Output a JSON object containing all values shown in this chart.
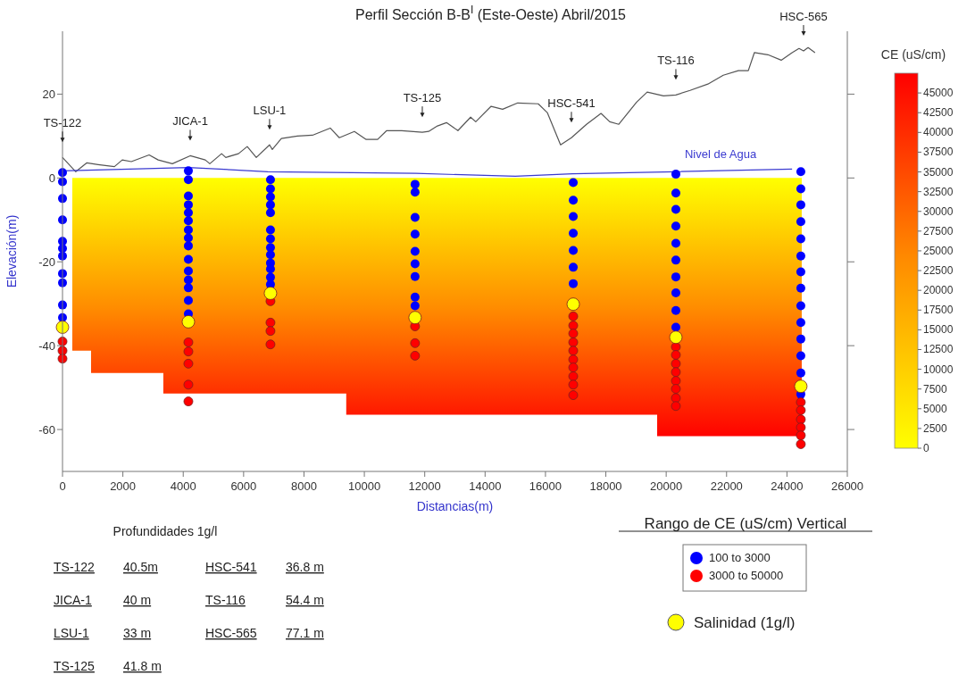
{
  "chart_data": {
    "type": "scatter",
    "title": "Perfil Sección B-B$^{I}$ (Este-Oeste) Abril/2015",
    "xlabel": "Distancias(m)",
    "ylabel": "Elevación(m)",
    "xlim": [
      0,
      26000
    ],
    "xticks": [
      0,
      2000,
      4000,
      6000,
      8000,
      10000,
      12000,
      14000,
      16000,
      18000,
      20000,
      22000,
      24000,
      26000
    ],
    "ylim": [
      -70,
      35
    ],
    "yticks": [
      -60,
      -40,
      -20,
      0,
      20
    ],
    "grid": false,
    "marker": "circle",
    "legend": "bottom right",
    "legend_title": "Rango de CE (uS/cm) Vertical",
    "clabel": "CE (uS/cm)",
    "clim": [
      0,
      47500
    ],
    "cticks": [
      0,
      2500,
      5000,
      7500,
      10000,
      12500,
      15000,
      17500,
      20000,
      22500,
      25000,
      27500,
      30000,
      32500,
      35000,
      37500,
      40000,
      42500,
      45000
    ],
    "series": [
      {
        "type": "area",
        "marker": "none",
        "x": [
          325,
          946,
          946,
          3340,
          3340,
          9400,
          9400,
          19700,
          19700,
          24490
        ],
        "values": [
          -41.2,
          -41.2,
          -46.5,
          -46.5,
          -51.4,
          -51.4,
          -56.5,
          -56.5,
          -61.6,
          -61.6
        ]
      },
      {
        "type": "line",
        "marker": "none",
        "color": "#555555",
        "x": [
          0,
          440,
          800,
          1180,
          1720,
          1980,
          2280,
          2870,
          3170,
          3640,
          4230,
          4730,
          4880,
          5270,
          5410,
          5830,
          6120,
          6420,
          6860,
          6950,
          7250,
          7780,
          8280,
          8870,
          9170,
          9670,
          10060,
          10440,
          10740,
          11240,
          11920,
          12130,
          12420,
          12720,
          13100,
          13520,
          13690,
          14200,
          14580,
          15080,
          15760,
          16060,
          16500,
          16860,
          17360,
          17840,
          18130,
          18430,
          19020,
          19370,
          19910,
          20320,
          20790,
          21380,
          21890,
          22390,
          22720,
          22920,
          23370,
          23810,
          24170,
          24400,
          24550,
          24700,
          24930
        ],
        "values": [
          4.9,
          1.5,
          3.6,
          3.2,
          2.7,
          4.3,
          3.9,
          5.5,
          4.3,
          3.4,
          5.3,
          4.3,
          3.4,
          5.8,
          4.9,
          5.8,
          7.5,
          4.9,
          7.9,
          6.8,
          9.4,
          10,
          10.2,
          11.9,
          9.6,
          11.1,
          9.2,
          9.2,
          11.3,
          11.3,
          10.9,
          11.1,
          12.4,
          13.2,
          11.3,
          14.5,
          13.4,
          17.1,
          16.4,
          17.9,
          17.7,
          15.6,
          7.9,
          9.6,
          12.8,
          15.4,
          13.4,
          12.8,
          18.1,
          20.5,
          19.6,
          19.8,
          20.9,
          22.4,
          24.5,
          25.6,
          25.6,
          29.9,
          29.4,
          28.1,
          29.9,
          30.9,
          30.3,
          31.1,
          29.9
        ]
      },
      {
        "type": "line",
        "marker": "none",
        "name": "Nivel de Agua",
        "color": "#3b3bd0",
        "x": [
          0,
          4170,
          6800,
          11700,
          15000,
          16900,
          20300,
          24170
        ],
        "values": [
          1.7,
          2.5,
          1.5,
          1.1,
          0.4,
          1.0,
          1.5,
          2.1
        ]
      },
      {
        "name": "100  to  3000",
        "color": "#0000ff",
        "x": [
          0,
          0,
          0,
          0,
          0,
          0,
          0,
          0,
          0,
          0,
          0,
          4170,
          4170,
          4170,
          4170,
          4170,
          4170,
          4170,
          4170,
          4170,
          4170,
          4170,
          4170,
          4170,
          4170,
          4170,
          6890,
          6890,
          6890,
          6890,
          6890,
          6890,
          6890,
          6890,
          6890,
          6890,
          6890,
          6890,
          6890,
          11680,
          11680,
          11680,
          11680,
          11680,
          11680,
          11680,
          11680,
          11680,
          16920,
          16920,
          16920,
          16920,
          16920,
          16920,
          16920,
          20320,
          20320,
          20320,
          20320,
          20320,
          20320,
          20320,
          20320,
          20320,
          20320,
          24460,
          24460,
          24460,
          24460,
          24460,
          24460,
          24460,
          24460,
          24460,
          24460,
          24460,
          24460,
          24460,
          24460
        ],
        "values": [
          1.3,
          -0.9,
          -4.9,
          -10,
          -15.1,
          -16.8,
          -18.6,
          -22.8,
          -25,
          -30.3,
          -33.3,
          1.7,
          -0.4,
          -4.3,
          -6.4,
          -8.3,
          -10.2,
          -12.4,
          -14.3,
          -16.2,
          -19.4,
          -22.2,
          -24.3,
          -26.2,
          -29.2,
          -32.4,
          -0.4,
          -2.6,
          -4.5,
          -6.4,
          -8.3,
          -12.4,
          -14.5,
          -16.6,
          -18.3,
          -20.3,
          -21.7,
          -23.7,
          -25.4,
          -1.5,
          -3.4,
          -9.4,
          -13.4,
          -17.5,
          -20.5,
          -23.5,
          -28.4,
          -30.5,
          -1.1,
          -5.3,
          -9.2,
          -13.2,
          -17.3,
          -21.3,
          -25.2,
          0.9,
          -3.6,
          -7.5,
          -11.5,
          -15.6,
          -19.6,
          -23.6,
          -27.4,
          -31.6,
          -35.6,
          1.5,
          -2.6,
          -6.4,
          -10.4,
          -14.5,
          -18.6,
          -22.4,
          -26.3,
          -30.5,
          -34.5,
          -38.4,
          -42.4,
          -46.5,
          -51.6
        ]
      },
      {
        "name": "3000  to  50000",
        "color": "#ff0000",
        "x": [
          0,
          0,
          0,
          4170,
          4170,
          4170,
          4170,
          4170,
          6890,
          6890,
          6890,
          6890,
          11680,
          11680,
          11680,
          16920,
          16920,
          16920,
          16920,
          16920,
          16920,
          16920,
          16920,
          16920,
          16920,
          20320,
          20320,
          20320,
          20320,
          20320,
          20320,
          20320,
          20320,
          24460,
          24460,
          24460,
          24460,
          24460,
          24460
        ],
        "values": [
          -39,
          -41.2,
          -43.1,
          -39.2,
          -41.4,
          -44.3,
          -49.3,
          -53.3,
          -29.4,
          -34.5,
          -36.5,
          -39.7,
          -35.4,
          -39.4,
          -42.4,
          -33,
          -35.2,
          -37.1,
          -39.2,
          -41.2,
          -43.3,
          -45.2,
          -47.3,
          -49.3,
          -51.8,
          -40.3,
          -42.2,
          -44.3,
          -46.3,
          -48.4,
          -50.3,
          -52.5,
          -54.4,
          -53.5,
          -55.4,
          -57.6,
          -59.5,
          -61.4,
          -63.5
        ]
      },
      {
        "name": "Salinidad (1g/l)",
        "color": "#ffff00",
        "x": [
          0,
          4170,
          6890,
          11680,
          16920,
          20320,
          24460
        ],
        "values": [
          -35.6,
          -34.3,
          -27.5,
          -33.3,
          -30.1,
          -38,
          -49.7
        ]
      }
    ],
    "annotations": [
      {
        "text": "TS-122",
        "x": 0,
        "y": 4.9
      },
      {
        "text": "JICA-1",
        "x": 4230,
        "y": 5.3
      },
      {
        "text": "LSU-1",
        "x": 6860,
        "y": 7.9
      },
      {
        "text": "TS-125",
        "x": 11920,
        "y": 10.9
      },
      {
        "text": "HSC-541",
        "x": 16860,
        "y": 9.6
      },
      {
        "text": "TS-116",
        "x": 20320,
        "y": 19.8
      },
      {
        "text": "HSC-565",
        "x": 24550,
        "y": 30.3
      },
      "Profundidades 1g/l",
      "TS-122",
      "40.5m",
      "JICA-1",
      "40 m",
      "LSU-1",
      "33 m",
      "TS-125",
      "41.8 m",
      "HSC-541",
      "36.8 m",
      "TS-116",
      "54.4 m",
      "HSC-565",
      "77.1 m"
    ]
  }
}
